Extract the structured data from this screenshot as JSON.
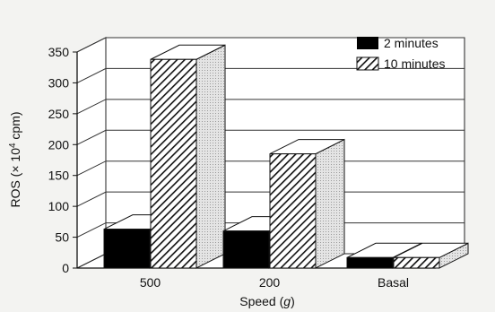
{
  "chart_data": {
    "type": "bar",
    "title": "",
    "xlabel": "Speed",
    "xlabel_unit": "g",
    "ylabel": "ROS (× 10",
    "ylabel_exp": "4",
    "ylabel_unit": " cpm)",
    "ylim": [
      0,
      350
    ],
    "yticks": [
      "0",
      "50",
      "100",
      "150",
      "200",
      "250",
      "300",
      "350"
    ],
    "grid": true,
    "legend_position": "top-right",
    "categories": [
      "500",
      "200",
      "Basal"
    ],
    "series": [
      {
        "name": "2 minutes",
        "values": [
          63,
          60,
          17
        ],
        "pattern": "solid-black"
      },
      {
        "name": "10 minutes",
        "values": [
          338,
          185,
          17
        ],
        "pattern": "diagonal-hatch"
      }
    ]
  }
}
